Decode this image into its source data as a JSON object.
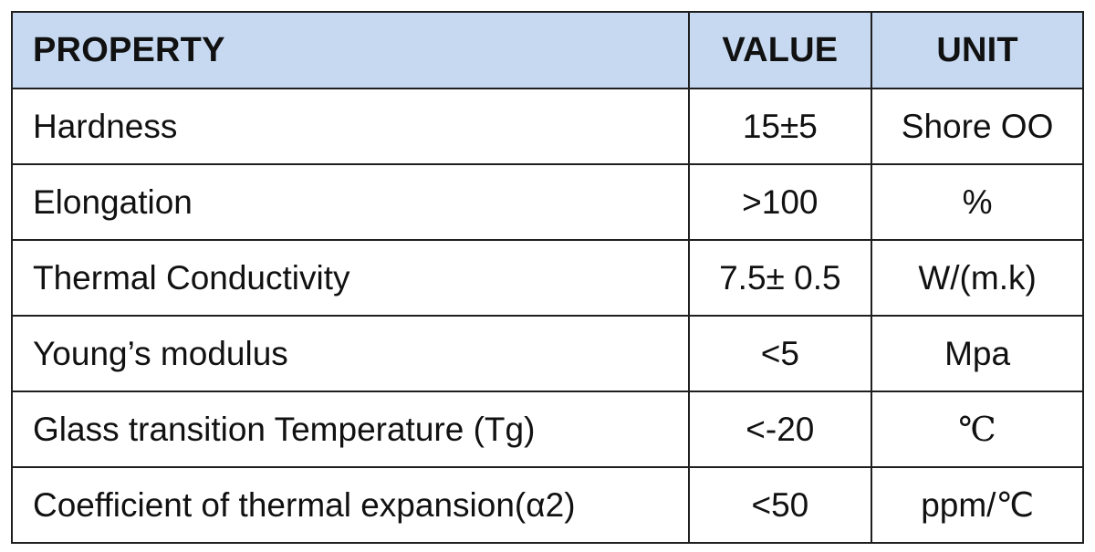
{
  "table": {
    "headers": {
      "property": "PROPERTY",
      "value": "VALUE",
      "unit": "UNIT"
    },
    "header_color": "#c6d9f1",
    "rows": [
      {
        "property": "Hardness",
        "value": "15±5",
        "unit": "Shore OO"
      },
      {
        "property": "Elongation",
        "value": ">100",
        "unit": "%"
      },
      {
        "property": "Thermal Conductivity",
        "value": "7.5± 0.5",
        "unit": "W/(m.k)"
      },
      {
        "property": "Young’s modulus",
        "value": "<5",
        "unit": "Mpa"
      },
      {
        "property": "Glass transition Temperature (Tg)",
        "value": "<-20",
        "unit": "℃"
      },
      {
        "property": "Coefficient of thermal expansion(α2)",
        "value": "<50",
        "unit": "ppm/℃"
      }
    ]
  }
}
